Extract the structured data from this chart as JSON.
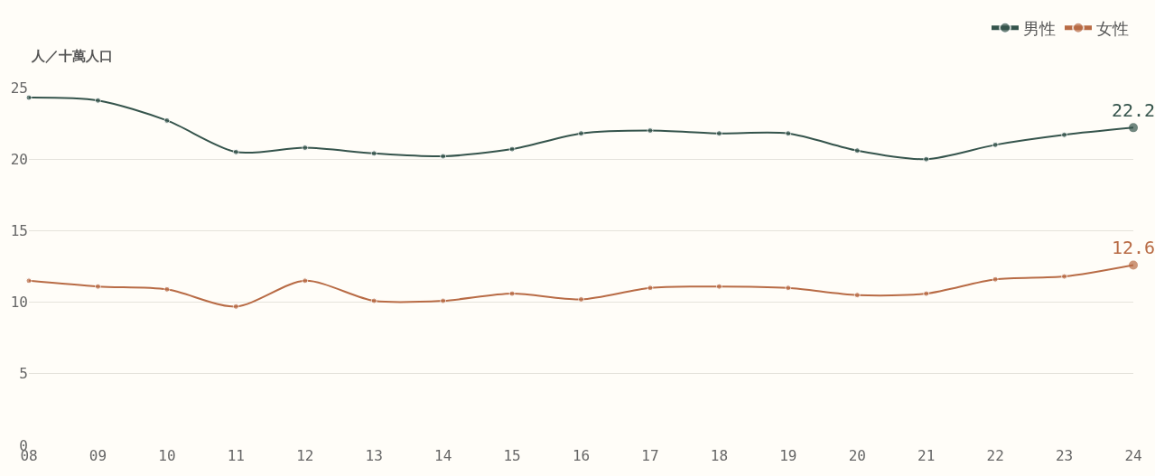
{
  "chart_data": {
    "type": "line",
    "ylabel": "人／十萬人口",
    "categories": [
      "08",
      "09",
      "10",
      "11",
      "12",
      "13",
      "14",
      "15",
      "16",
      "17",
      "18",
      "19",
      "20",
      "21",
      "22",
      "23",
      "24"
    ],
    "series": [
      {
        "name": "男性",
        "color": "#35544c",
        "values": [
          24.3,
          24.1,
          22.7,
          20.5,
          20.8,
          20.4,
          20.2,
          20.7,
          21.8,
          22.0,
          21.8,
          21.8,
          20.6,
          20.0,
          21.0,
          21.7,
          22.2
        ],
        "value_labels": [
          null,
          null,
          null,
          null,
          null,
          null,
          null,
          null,
          null,
          null,
          null,
          null,
          null,
          null,
          null,
          null,
          "22.2"
        ]
      },
      {
        "name": "女性",
        "color": "#b86b45",
        "values": [
          11.5,
          11.1,
          10.9,
          9.7,
          11.5,
          10.1,
          10.1,
          10.6,
          10.2,
          11.0,
          11.1,
          11.0,
          10.5,
          10.6,
          11.6,
          11.8,
          12.6
        ],
        "value_labels": [
          null,
          null,
          null,
          null,
          null,
          null,
          null,
          null,
          null,
          null,
          null,
          null,
          null,
          null,
          null,
          null,
          "12.6"
        ]
      }
    ],
    "ylim": [
      0,
      25
    ],
    "yticks": [
      0,
      5,
      10,
      15,
      20,
      25
    ],
    "grid": "y",
    "legend": "top right",
    "marker": "circle",
    "line_style": "solid"
  }
}
